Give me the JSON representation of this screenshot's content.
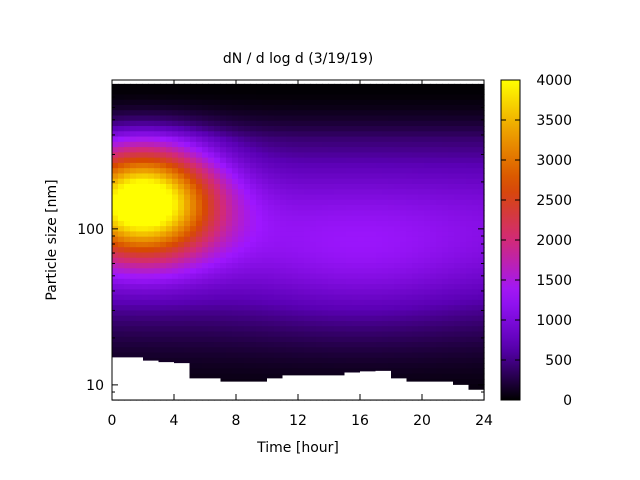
{
  "chart_data": {
    "type": "heatmap",
    "title": "dN / d log d (3/19/19)",
    "xlabel": "Time [hour]",
    "ylabel": "Particle size [nm]",
    "xlim": [
      0,
      24
    ],
    "x_ticks": [
      0,
      4,
      8,
      12,
      16,
      20,
      24
    ],
    "y_scale": "log",
    "ylim": [
      8,
      900
    ],
    "y_tick_labels": [
      10,
      100
    ],
    "colorbar": {
      "range": [
        0,
        4000
      ],
      "ticks": [
        0,
        500,
        1000,
        1500,
        2000,
        2500,
        3000,
        3500,
        4000
      ],
      "palette": [
        "#000000",
        "#5a00b4",
        "#9e16ff",
        "#d22a78",
        "#d74a00",
        "#ec9c00",
        "#ffff00"
      ]
    },
    "y_top_nm": 850,
    "min_size_nm": [
      [
        0,
        15.0
      ],
      [
        1,
        15.0
      ],
      [
        2,
        14.3
      ],
      [
        3,
        14.0
      ],
      [
        4,
        13.8
      ],
      [
        5,
        11.0
      ],
      [
        6,
        11.0
      ],
      [
        7,
        10.5
      ],
      [
        8,
        10.5
      ],
      [
        9,
        10.5
      ],
      [
        10,
        11.0
      ],
      [
        11,
        11.5
      ],
      [
        12,
        11.5
      ],
      [
        13,
        11.5
      ],
      [
        14,
        11.5
      ],
      [
        15,
        12.0
      ],
      [
        16,
        12.2
      ],
      [
        17,
        12.3
      ],
      [
        18,
        11.0
      ],
      [
        19,
        10.5
      ],
      [
        20,
        10.5
      ],
      [
        21,
        10.5
      ],
      [
        22,
        10.0
      ],
      [
        23,
        9.3
      ],
      [
        24,
        9.0
      ]
    ],
    "modes": [
      {
        "time_hour": 2,
        "size_nm": 150,
        "peak_value": 3600
      },
      {
        "time_hour": 16,
        "size_nm": 60,
        "peak_value": 1000
      }
    ]
  }
}
